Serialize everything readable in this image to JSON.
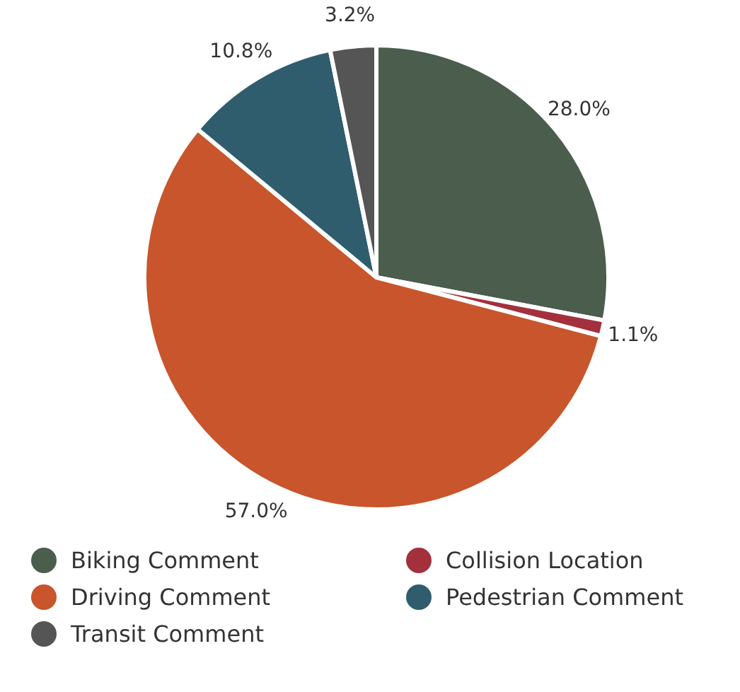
{
  "chart_data": {
    "type": "pie",
    "categories": [
      "Biking Comment",
      "Collision Location",
      "Driving Comment",
      "Pedestrian Comment",
      "Transit Comment"
    ],
    "values": [
      28.0,
      1.1,
      57.0,
      10.8,
      3.2
    ],
    "colors": [
      "#4b5d4d",
      "#a3303c",
      "#c8552b",
      "#2f5d6e",
      "#555555"
    ],
    "value_labels": [
      "28.0%",
      "1.1%",
      "57.0%",
      "10.8%",
      "3.2%"
    ],
    "legend": "bottom"
  }
}
